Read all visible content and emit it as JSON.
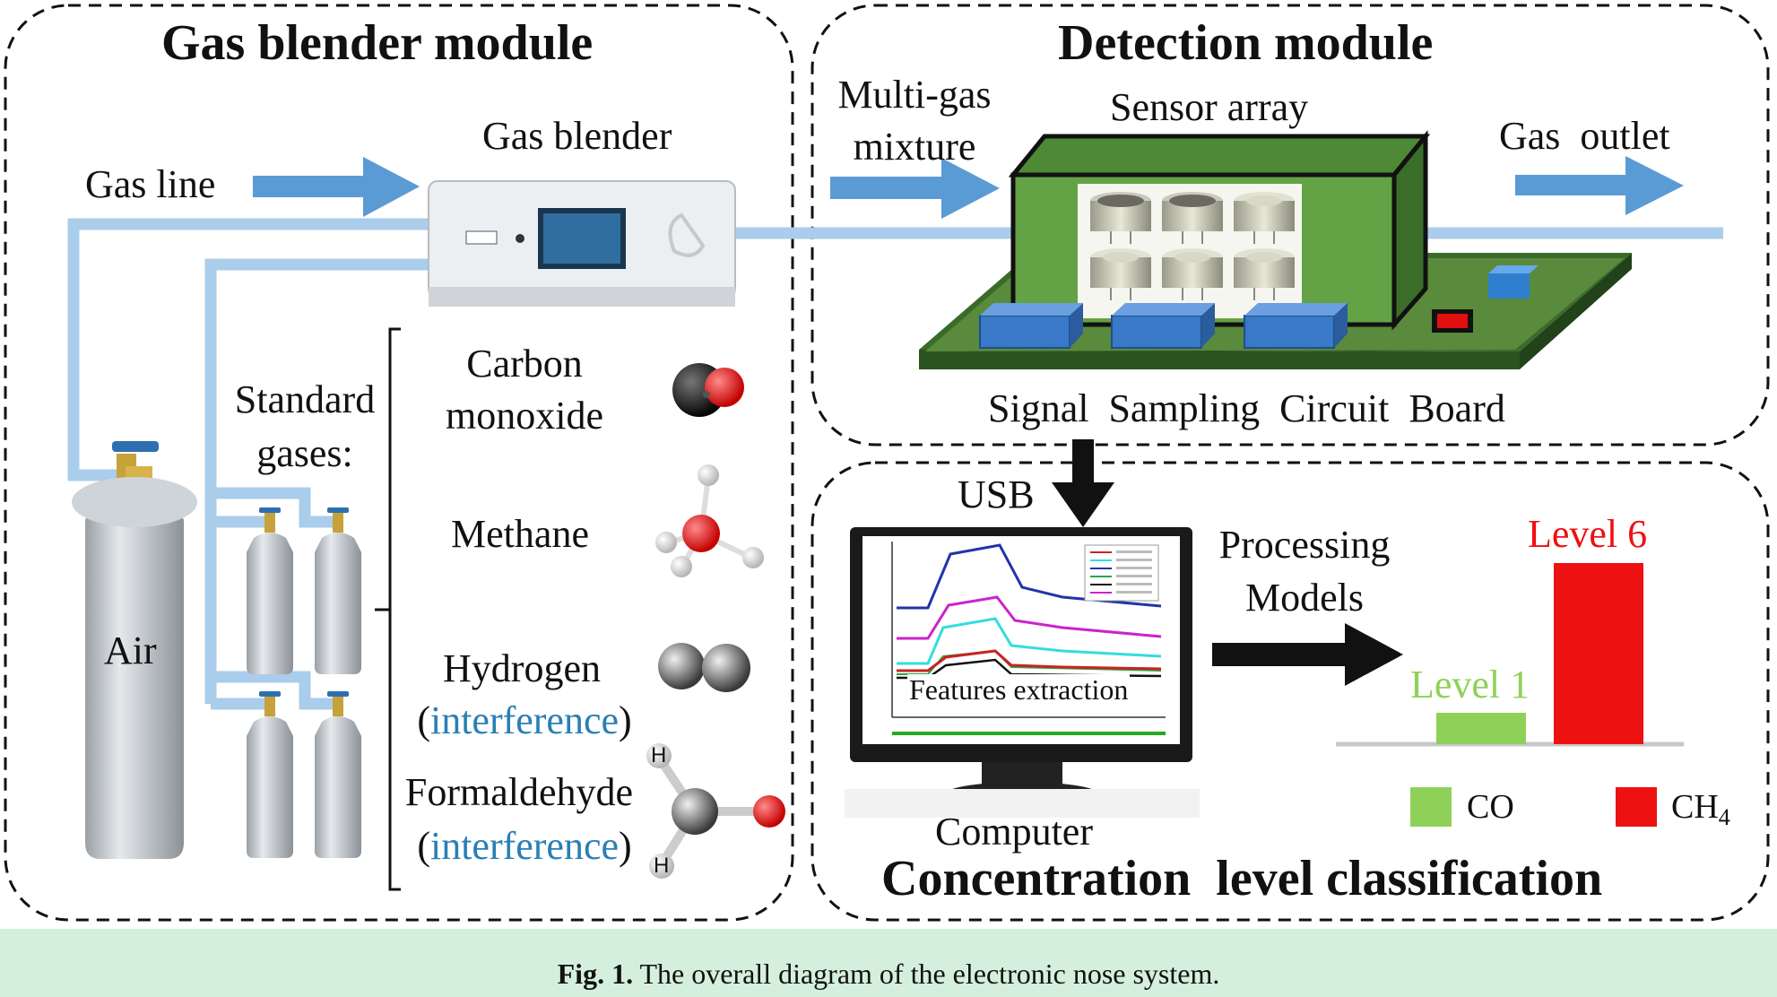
{
  "gas_blender_module": {
    "title": "Gas blender module",
    "gas_line": "Gas line",
    "gas_blender": "Gas blender",
    "standard_gases_1": "Standard",
    "standard_gases_2": "gases:",
    "air": "Air",
    "gases": [
      {
        "line1": "Carbon",
        "line2": "monoxide"
      },
      {
        "line1": "Methane",
        "line2": ""
      },
      {
        "line1": "Hydrogen",
        "line2_open": "(",
        "line2_blue": "interference",
        "line2_close": ")"
      },
      {
        "line1": "Formaldehyde",
        "line2_open": "(",
        "line2_blue": "interference",
        "line2_close": ")"
      }
    ],
    "atom_h": "H"
  },
  "detection_module": {
    "title": "Detection module",
    "multi_gas_1": "Multi-gas",
    "multi_gas_2": "mixture",
    "sensor_array": "Sensor array",
    "gas_outlet": "Gas  outlet",
    "board": "Signal  Sampling  Circuit  Board"
  },
  "classification_module": {
    "title": "Concentration  level classification",
    "usb": "USB",
    "processing_1": "Processing",
    "processing_2": "Models",
    "computer": "Computer",
    "features": "Features extraction",
    "level1": "Level 1",
    "level6": "Level 6",
    "legend_co": "CO",
    "legend_ch": "CH",
    "legend_ch_sub": "4",
    "level_values": {
      "CO": 1,
      "CH4": 6
    },
    "colors": {
      "CO": "#8fd158",
      "CH4": "#ee1111"
    }
  },
  "caption": {
    "label": "Fig. 1.",
    "text": " The overall diagram of the electronic nose system."
  },
  "colors": {
    "pipe": "#a9cdea",
    "arrow": "#5b9bd5",
    "board": "#5a8a3c",
    "box": "#64a246",
    "chip": "#3a78c8"
  }
}
